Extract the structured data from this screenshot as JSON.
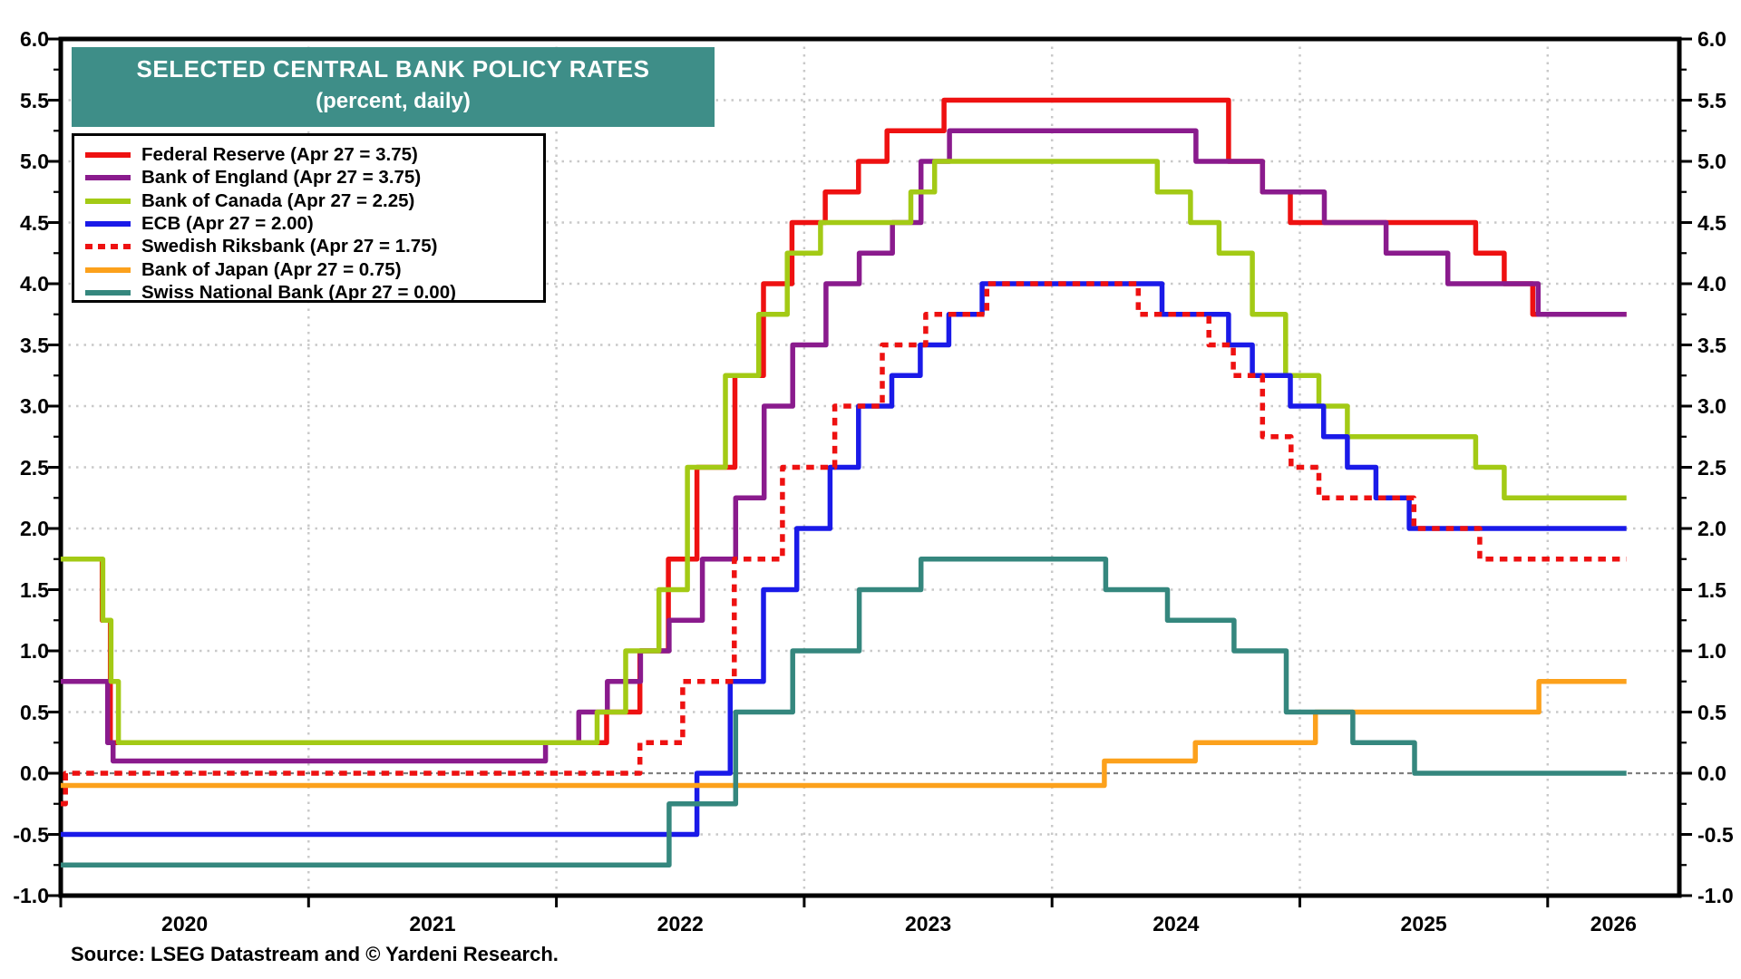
{
  "title": "SELECTED CENTRAL BANK POLICY RATES",
  "subtitle": "(percent, daily)",
  "source": "Source: LSEG Datastream and © Yardeni Research.",
  "colors": {
    "title_bar_bg": "#3E8E88",
    "title_text": "#FFFFFF",
    "frame": "#000000",
    "grid_dotted": "#C9C9C9",
    "zero_line": "#7F7F7F",
    "fed": "#EE1111",
    "boe": "#8A1B8D",
    "boc": "#A3CA15",
    "ecb": "#1A1AE8",
    "riksbank": "#EE1111",
    "boj": "#FCA11C",
    "snb": "#35877E"
  },
  "axes": {
    "y_tick_labels": [
      "6.0",
      "5.5",
      "5.0",
      "4.5",
      "4.0",
      "3.5",
      "3.0",
      "2.5",
      "2.0",
      "1.5",
      "1.0",
      "0.5",
      "0.0",
      "-0.5",
      "-1.0"
    ],
    "y_tick_values": [
      6.0,
      5.5,
      5.0,
      4.5,
      4.0,
      3.5,
      3.0,
      2.5,
      2.0,
      1.5,
      1.0,
      0.5,
      0.0,
      -0.5,
      -1.0
    ],
    "minor_tick_step": 0.25,
    "x_year_labels": [
      "2020",
      "2021",
      "2022",
      "2023",
      "2024",
      "2025",
      "2026"
    ],
    "grid": "dotted horizontal every 0.5, dotted vertical at year boundaries, dashed gray line at zero"
  },
  "chart_data": {
    "type": "line",
    "style": "step",
    "title": "SELECTED CENTRAL BANK POLICY RATES",
    "subtitle": "(percent, daily)",
    "xlabel": "",
    "ylabel": "percent",
    "ylim": [
      -1.0,
      6.0
    ],
    "x_domain": [
      "2020-01-01",
      "2026-07-15"
    ],
    "data_end": "2026-04-27",
    "legend_position": "top-left",
    "series": [
      {
        "name": "fed",
        "label": "Federal Reserve (Apr 27 = 3.75)",
        "color_key": "fed",
        "dash": false,
        "points": [
          [
            "2020-01-01",
            1.75
          ],
          [
            "2020-03-03",
            1.25
          ],
          [
            "2020-03-15",
            0.25
          ],
          [
            "2022-03-16",
            0.5
          ],
          [
            "2022-05-04",
            1.0
          ],
          [
            "2022-06-15",
            1.75
          ],
          [
            "2022-07-27",
            2.5
          ],
          [
            "2022-09-21",
            3.25
          ],
          [
            "2022-11-02",
            4.0
          ],
          [
            "2022-12-14",
            4.5
          ],
          [
            "2023-02-01",
            4.75
          ],
          [
            "2023-03-22",
            5.0
          ],
          [
            "2023-05-03",
            5.25
          ],
          [
            "2023-07-26",
            5.5
          ],
          [
            "2024-09-18",
            5.0
          ],
          [
            "2024-11-07",
            4.75
          ],
          [
            "2024-12-18",
            4.5
          ],
          [
            "2025-09-17",
            4.25
          ],
          [
            "2025-10-29",
            4.0
          ],
          [
            "2025-12-10",
            3.75
          ]
        ]
      },
      {
        "name": "boe",
        "label": "Bank of England (Apr 27 = 3.75)",
        "color_key": "boe",
        "dash": false,
        "points": [
          [
            "2020-01-01",
            0.75
          ],
          [
            "2020-03-11",
            0.25
          ],
          [
            "2020-03-19",
            0.1
          ],
          [
            "2021-12-16",
            0.25
          ],
          [
            "2022-02-03",
            0.5
          ],
          [
            "2022-03-17",
            0.75
          ],
          [
            "2022-05-05",
            1.0
          ],
          [
            "2022-06-16",
            1.25
          ],
          [
            "2022-08-04",
            1.75
          ],
          [
            "2022-09-22",
            2.25
          ],
          [
            "2022-11-03",
            3.0
          ],
          [
            "2022-12-15",
            3.5
          ],
          [
            "2023-02-02",
            4.0
          ],
          [
            "2023-03-23",
            4.25
          ],
          [
            "2023-05-11",
            4.5
          ],
          [
            "2023-06-22",
            5.0
          ],
          [
            "2023-08-03",
            5.25
          ],
          [
            "2024-08-01",
            5.0
          ],
          [
            "2024-11-07",
            4.75
          ],
          [
            "2025-02-06",
            4.5
          ],
          [
            "2025-05-08",
            4.25
          ],
          [
            "2025-08-07",
            4.0
          ],
          [
            "2025-12-18",
            3.75
          ]
        ]
      },
      {
        "name": "boc",
        "label": "Bank of Canada (Apr 27 = 2.25)",
        "color_key": "boc",
        "dash": false,
        "points": [
          [
            "2020-01-01",
            1.75
          ],
          [
            "2020-03-04",
            1.25
          ],
          [
            "2020-03-16",
            0.75
          ],
          [
            "2020-03-27",
            0.25
          ],
          [
            "2022-03-02",
            0.5
          ],
          [
            "2022-04-13",
            1.0
          ],
          [
            "2022-06-01",
            1.5
          ],
          [
            "2022-07-13",
            2.5
          ],
          [
            "2022-09-07",
            3.25
          ],
          [
            "2022-10-26",
            3.75
          ],
          [
            "2022-12-07",
            4.25
          ],
          [
            "2023-01-25",
            4.5
          ],
          [
            "2023-06-07",
            4.75
          ],
          [
            "2023-07-12",
            5.0
          ],
          [
            "2024-06-05",
            4.75
          ],
          [
            "2024-07-24",
            4.5
          ],
          [
            "2024-09-04",
            4.25
          ],
          [
            "2024-10-23",
            3.75
          ],
          [
            "2024-12-11",
            3.25
          ],
          [
            "2025-01-29",
            3.0
          ],
          [
            "2025-03-12",
            2.75
          ],
          [
            "2025-09-17",
            2.5
          ],
          [
            "2025-10-29",
            2.25
          ]
        ]
      },
      {
        "name": "ecb",
        "label": "ECB (Apr 27 = 2.00)",
        "color_key": "ecb",
        "dash": false,
        "points": [
          [
            "2020-01-01",
            -0.5
          ],
          [
            "2022-07-27",
            0.0
          ],
          [
            "2022-09-14",
            0.75
          ],
          [
            "2022-11-02",
            1.5
          ],
          [
            "2022-12-21",
            2.0
          ],
          [
            "2023-02-08",
            2.5
          ],
          [
            "2023-03-22",
            3.0
          ],
          [
            "2023-05-10",
            3.25
          ],
          [
            "2023-06-21",
            3.5
          ],
          [
            "2023-08-02",
            3.75
          ],
          [
            "2023-09-20",
            4.0
          ],
          [
            "2024-06-12",
            3.75
          ],
          [
            "2024-09-18",
            3.5
          ],
          [
            "2024-10-23",
            3.25
          ],
          [
            "2024-12-18",
            3.0
          ],
          [
            "2025-02-05",
            2.75
          ],
          [
            "2025-03-12",
            2.5
          ],
          [
            "2025-04-23",
            2.25
          ],
          [
            "2025-06-11",
            2.0
          ]
        ]
      },
      {
        "name": "riksbank",
        "label": "Swedish Riksbank (Apr 27 = 1.75)",
        "color_key": "riksbank",
        "dash": true,
        "points": [
          [
            "2020-01-01",
            -0.25
          ],
          [
            "2020-01-08",
            0.0
          ],
          [
            "2022-05-04",
            0.25
          ],
          [
            "2022-07-06",
            0.75
          ],
          [
            "2022-09-20",
            1.75
          ],
          [
            "2022-11-30",
            2.5
          ],
          [
            "2023-02-15",
            3.0
          ],
          [
            "2023-04-26",
            3.5
          ],
          [
            "2023-06-29",
            3.75
          ],
          [
            "2023-09-27",
            4.0
          ],
          [
            "2024-05-08",
            3.75
          ],
          [
            "2024-08-20",
            3.5
          ],
          [
            "2024-09-25",
            3.25
          ],
          [
            "2024-11-07",
            2.75
          ],
          [
            "2024-12-19",
            2.5
          ],
          [
            "2025-01-29",
            2.25
          ],
          [
            "2025-06-18",
            2.0
          ],
          [
            "2025-09-23",
            1.75
          ]
        ]
      },
      {
        "name": "boj",
        "label": "Bank of Japan (Apr 27 = 0.75)",
        "color_key": "boj",
        "dash": false,
        "points": [
          [
            "2020-01-01",
            -0.1
          ],
          [
            "2024-03-19",
            0.1
          ],
          [
            "2024-07-31",
            0.25
          ],
          [
            "2025-01-24",
            0.5
          ],
          [
            "2025-12-19",
            0.75
          ]
        ]
      },
      {
        "name": "snb",
        "label": "Swiss National Bank (Apr 27 = 0.00)",
        "color_key": "snb",
        "dash": false,
        "points": [
          [
            "2020-01-01",
            -0.75
          ],
          [
            "2022-06-16",
            -0.25
          ],
          [
            "2022-09-22",
            0.5
          ],
          [
            "2022-12-15",
            1.0
          ],
          [
            "2023-03-23",
            1.5
          ],
          [
            "2023-06-22",
            1.75
          ],
          [
            "2024-03-21",
            1.5
          ],
          [
            "2024-06-20",
            1.25
          ],
          [
            "2024-09-26",
            1.0
          ],
          [
            "2024-12-12",
            0.5
          ],
          [
            "2025-03-20",
            0.25
          ],
          [
            "2025-06-19",
            0.0
          ]
        ]
      }
    ]
  }
}
